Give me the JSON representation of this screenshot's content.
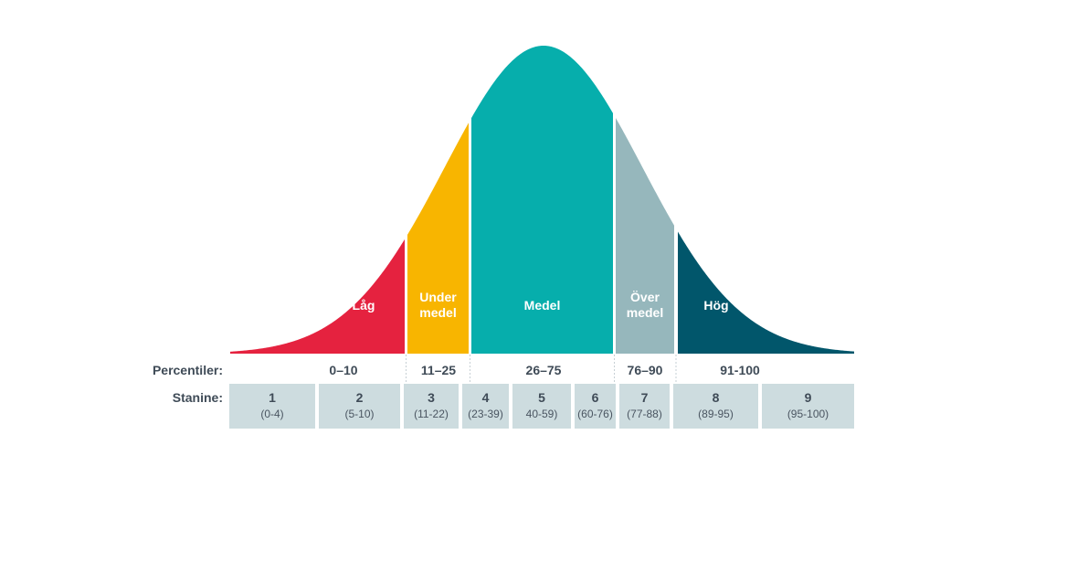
{
  "segments": [
    {
      "label": "Låg",
      "color": "#e5223f"
    },
    {
      "label": "Under\nmedel",
      "color": "#f8b500"
    },
    {
      "label": "Medel",
      "color": "#06aeac"
    },
    {
      "label": "Över\nmedel",
      "color": "#96b7bc"
    },
    {
      "label": "Hög",
      "color": "#01566b"
    }
  ],
  "percentile_row_label": "Percentiler:",
  "percentiles": [
    "0–10",
    "11–25",
    "26–75",
    "76–90",
    "91-100"
  ],
  "stanine_row_label": "Stanine:",
  "stanine_box_color": "#cddcdf",
  "stanines": [
    {
      "num": "1",
      "range": "(0-4)"
    },
    {
      "num": "2",
      "range": "(5-10)"
    },
    {
      "num": "3",
      "range": "(11-22)"
    },
    {
      "num": "4",
      "range": "(23-39)"
    },
    {
      "num": "5",
      "range": "40-59)"
    },
    {
      "num": "6",
      "range": "(60-76)"
    },
    {
      "num": "7",
      "range": "(77-88)"
    },
    {
      "num": "8",
      "range": "(89-95)"
    },
    {
      "num": "9",
      "range": "(95-100)"
    }
  ]
}
